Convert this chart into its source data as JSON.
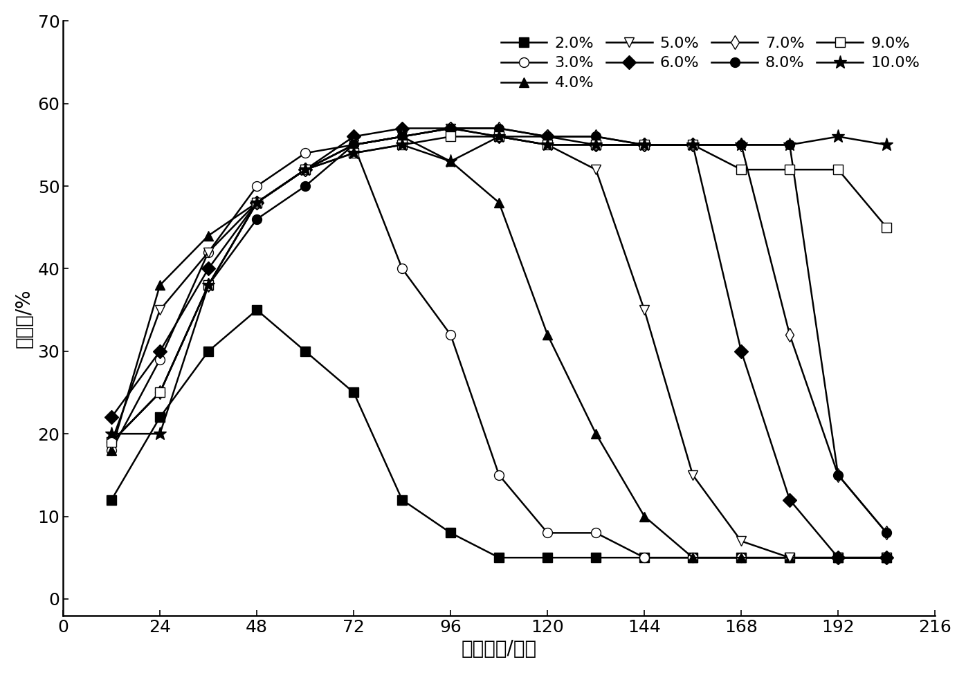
{
  "series": [
    {
      "label": "2.0%",
      "marker": "s",
      "fillstyle": "full",
      "x": [
        12,
        24,
        36,
        48,
        60,
        72,
        84,
        96,
        108,
        120,
        132,
        144,
        156,
        168,
        180,
        192,
        204
      ],
      "y": [
        12,
        22,
        30,
        35,
        30,
        25,
        12,
        8,
        5,
        5,
        5,
        5,
        5,
        5,
        5,
        5,
        5
      ]
    },
    {
      "label": "3.0%",
      "marker": "o",
      "fillstyle": "none",
      "x": [
        12,
        24,
        36,
        48,
        60,
        72,
        84,
        96,
        108,
        120,
        132,
        144,
        156,
        168,
        180,
        192,
        204
      ],
      "y": [
        18,
        29,
        42,
        50,
        54,
        55,
        40,
        32,
        15,
        8,
        8,
        5,
        5,
        5,
        5,
        5,
        5
      ]
    },
    {
      "label": "4.0%",
      "marker": "^",
      "fillstyle": "full",
      "x": [
        12,
        24,
        36,
        48,
        60,
        72,
        84,
        96,
        108,
        120,
        132,
        144,
        156,
        168,
        180,
        192,
        204
      ],
      "y": [
        18,
        38,
        44,
        48,
        52,
        55,
        56,
        53,
        48,
        32,
        20,
        10,
        5,
        5,
        5,
        5,
        5
      ]
    },
    {
      "label": "5.0%",
      "marker": "v",
      "fillstyle": "none",
      "x": [
        12,
        24,
        36,
        48,
        60,
        72,
        84,
        96,
        108,
        120,
        132,
        144,
        156,
        168,
        180,
        192,
        204
      ],
      "y": [
        19,
        35,
        42,
        48,
        52,
        55,
        56,
        57,
        56,
        55,
        52,
        35,
        15,
        7,
        5,
        5,
        5
      ]
    },
    {
      "label": "6.0%",
      "marker": "D",
      "fillstyle": "full",
      "x": [
        12,
        24,
        36,
        48,
        60,
        72,
        84,
        96,
        108,
        120,
        132,
        144,
        156,
        168,
        180,
        192,
        204
      ],
      "y": [
        22,
        30,
        40,
        48,
        52,
        56,
        57,
        57,
        56,
        56,
        55,
        55,
        55,
        30,
        12,
        5,
        5
      ]
    },
    {
      "label": "7.0%",
      "marker": "d",
      "fillstyle": "none",
      "x": [
        12,
        24,
        36,
        48,
        60,
        72,
        84,
        96,
        108,
        120,
        132,
        144,
        156,
        168,
        180,
        192,
        204
      ],
      "y": [
        19,
        25,
        38,
        48,
        52,
        55,
        56,
        57,
        57,
        56,
        56,
        55,
        55,
        55,
        32,
        15,
        8
      ]
    },
    {
      "label": "8.0%",
      "marker": "o",
      "fillstyle": "full",
      "x": [
        12,
        24,
        36,
        48,
        60,
        72,
        84,
        96,
        108,
        120,
        132,
        144,
        156,
        168,
        180,
        192,
        204
      ],
      "y": [
        19,
        25,
        38,
        46,
        50,
        55,
        56,
        57,
        57,
        56,
        56,
        55,
        55,
        55,
        55,
        15,
        8
      ]
    },
    {
      "label": "9.0%",
      "marker": "s",
      "fillstyle": "none",
      "x": [
        12,
        24,
        36,
        48,
        60,
        72,
        84,
        96,
        108,
        120,
        132,
        144,
        156,
        168,
        180,
        192,
        204
      ],
      "y": [
        19,
        25,
        38,
        48,
        52,
        54,
        55,
        56,
        56,
        55,
        55,
        55,
        55,
        52,
        52,
        52,
        45
      ]
    },
    {
      "label": "10.0%",
      "marker": "*",
      "fillstyle": "full",
      "x": [
        12,
        24,
        36,
        48,
        60,
        72,
        84,
        96,
        108,
        120,
        132,
        144,
        156,
        168,
        180,
        192,
        204
      ],
      "y": [
        20,
        20,
        38,
        48,
        52,
        54,
        55,
        53,
        56,
        55,
        55,
        55,
        55,
        55,
        55,
        56,
        55
      ]
    }
  ],
  "xlabel": "发酵周期/小时",
  "ylabel": "生物量/%",
  "xlim": [
    0,
    216
  ],
  "ylim": [
    -2,
    70
  ],
  "xticks": [
    0,
    24,
    48,
    72,
    96,
    120,
    144,
    168,
    192,
    216
  ],
  "yticks": [
    0,
    10,
    20,
    30,
    40,
    50,
    60,
    70
  ],
  "axis_fontsize": 20,
  "tick_fontsize": 18,
  "legend_fontsize": 16,
  "background_color": "#ffffff"
}
